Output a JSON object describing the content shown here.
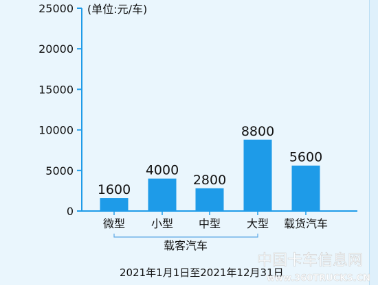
{
  "chart_data": {
    "type": "bar",
    "unit_label": "(单位:元/车)",
    "yticks": [
      0,
      5000,
      10000,
      15000,
      20000,
      25000
    ],
    "ylim": [
      0,
      25000
    ],
    "categories": [
      "微型",
      "小型",
      "中型",
      "大型",
      "载货汽车"
    ],
    "values": [
      1600,
      4000,
      2800,
      8800,
      5600
    ],
    "value_labels": [
      "1600",
      "4000",
      "2800",
      "8800",
      "5600"
    ],
    "group_label": "载客汽车",
    "grid": false,
    "colors": {
      "bar": "#1e9be8",
      "axis": "#1e9be8",
      "bracket": "#5aa7e6",
      "background": "#eaf6fd"
    }
  },
  "footnote": "2021年1月1日至2021年12月31日",
  "watermark": {
    "cn": "中国卡车信息网",
    "en": "www.360TRUCKS.CN"
  }
}
